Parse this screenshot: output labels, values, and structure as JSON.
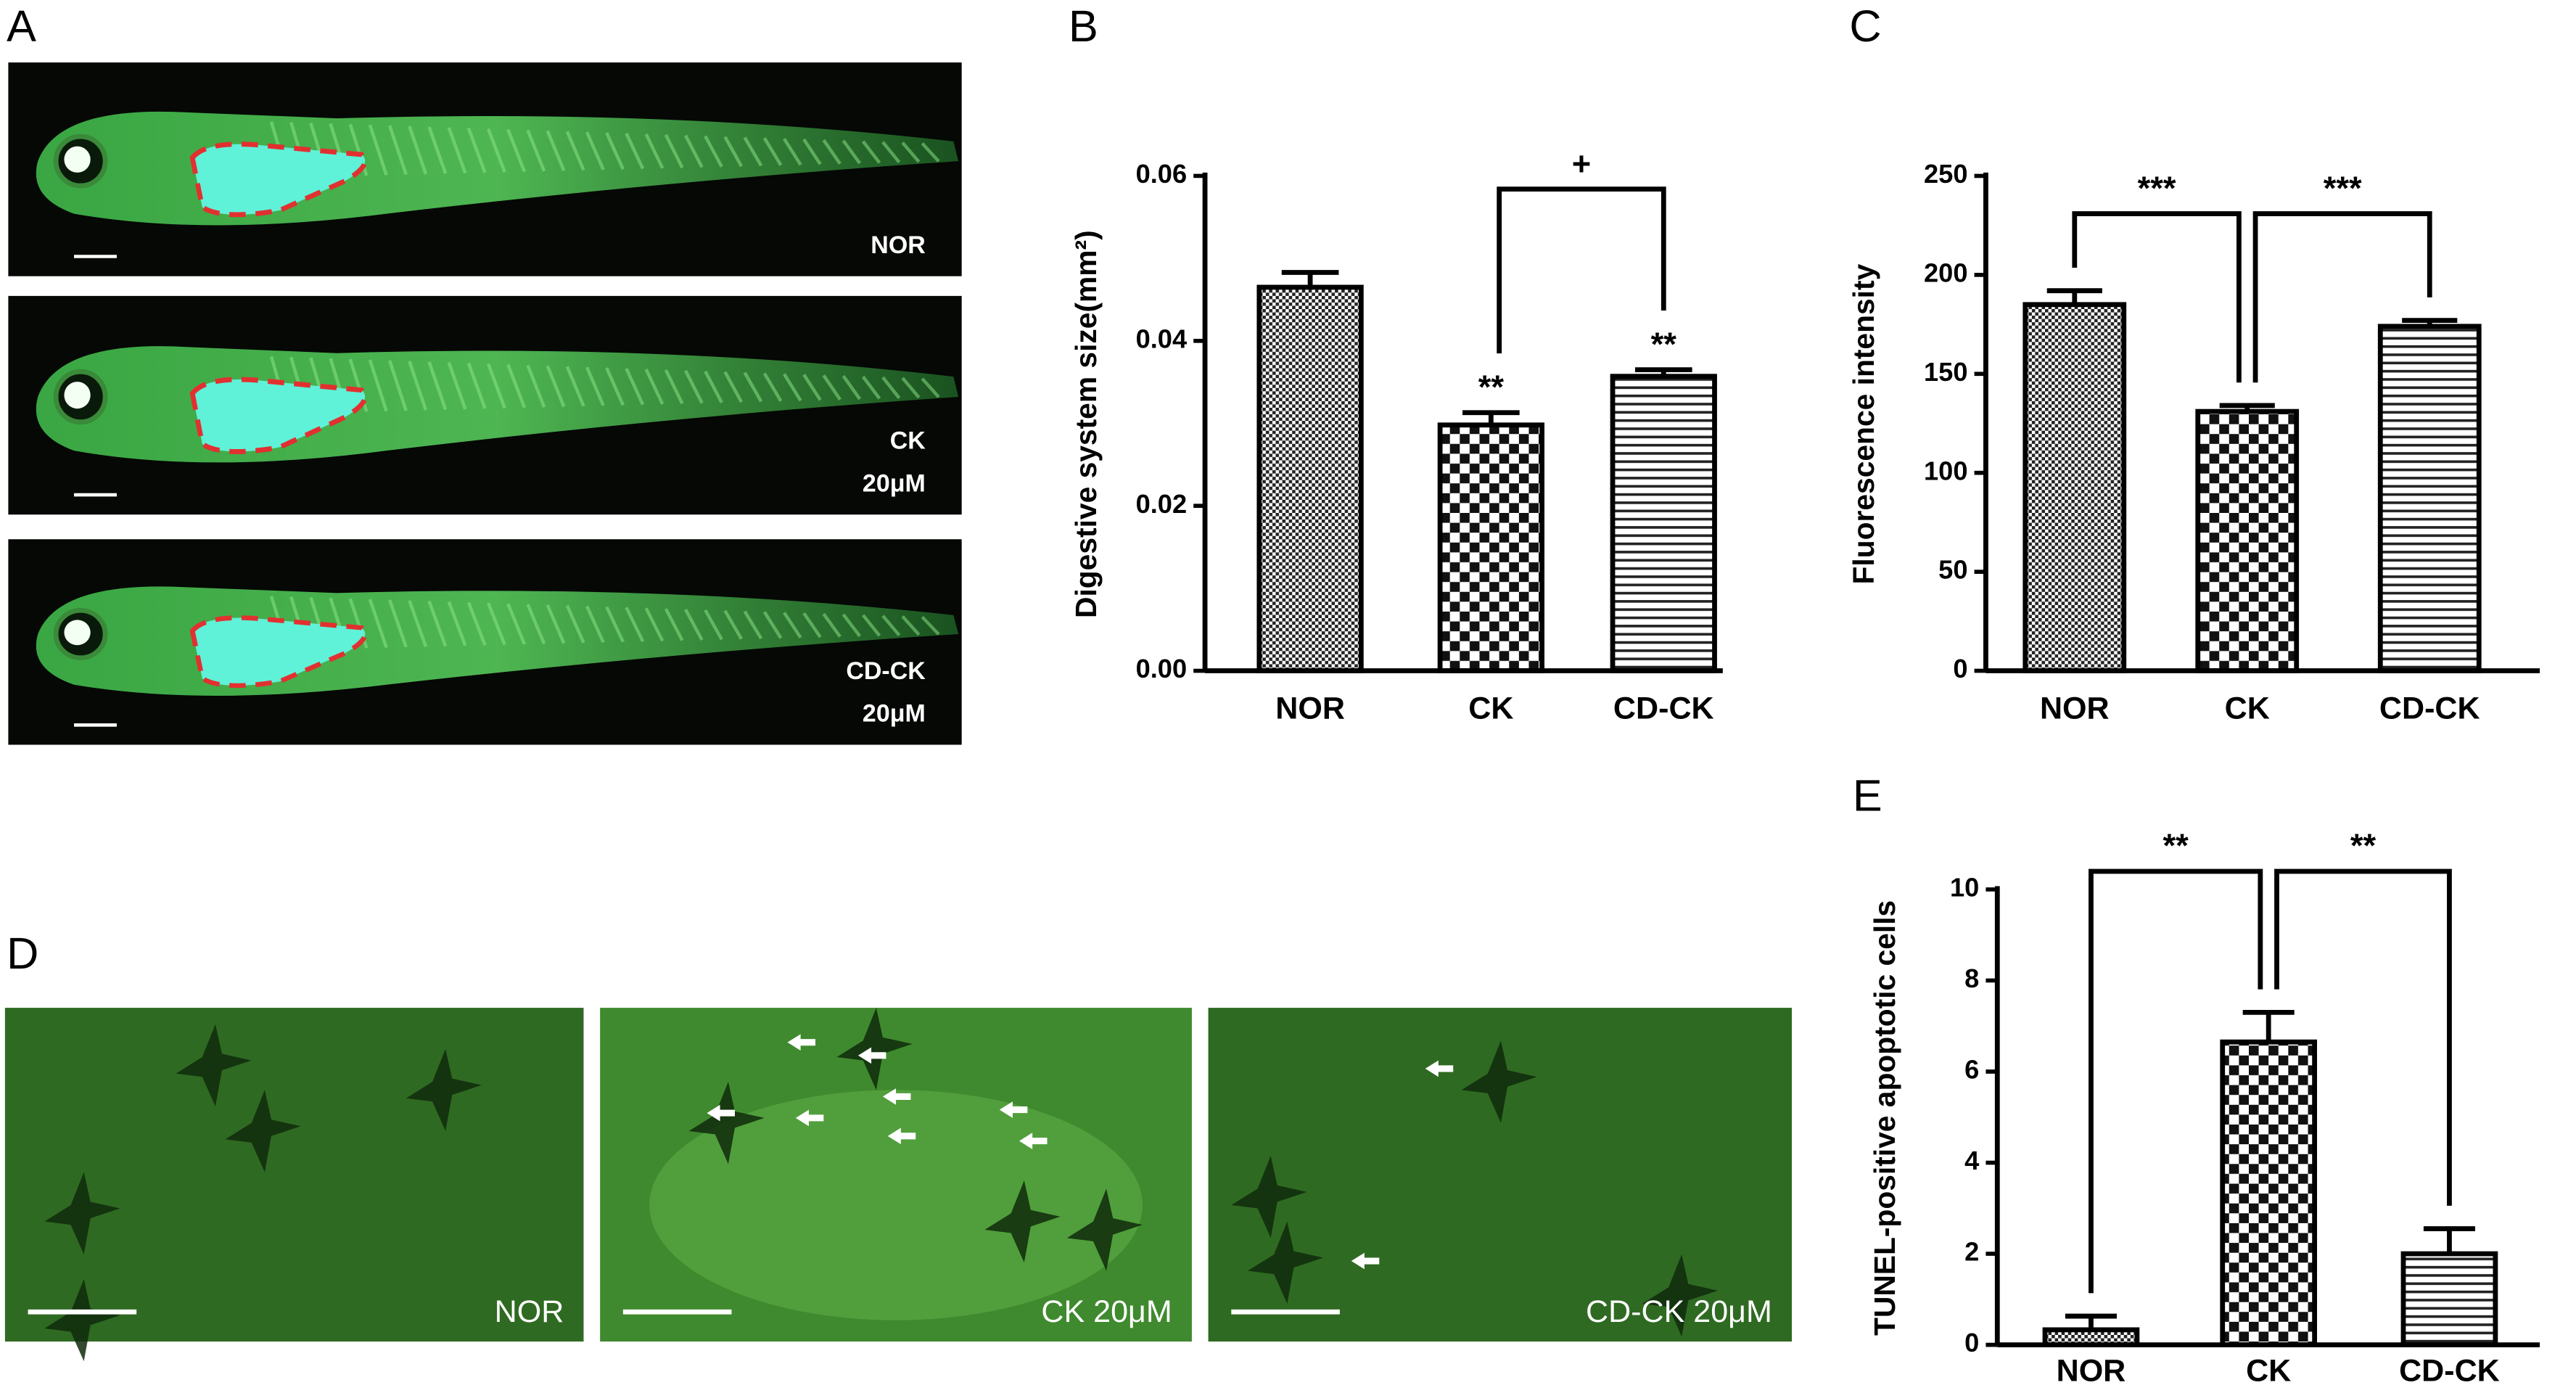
{
  "chart_data": [
    {
      "type": "bar",
      "panel": "B",
      "ylabel": "Digestive system size(mm²)",
      "categories": [
        "NOR",
        "CK",
        "CD-CK"
      ],
      "values": [
        0.0465,
        0.0298,
        0.0357
      ],
      "errors": [
        0.0018,
        0.0015,
        0.0008
      ],
      "marks": [
        null,
        "**",
        "**"
      ],
      "comparisons": [
        {
          "label": "+",
          "from": 1,
          "to": 2
        }
      ],
      "ylim": [
        0,
        0.06
      ],
      "yticks": [
        {
          "value": 0,
          "label": "0.00"
        },
        0.02,
        0.04,
        0.06
      ]
    },
    {
      "type": "bar",
      "panel": "C",
      "ylabel": "Fluorescence intensity",
      "categories": [
        "NOR",
        "CK",
        "CD-CK"
      ],
      "values": [
        185,
        131,
        174
      ],
      "errors": [
        7,
        3,
        3
      ],
      "marks": [
        null,
        null,
        null
      ],
      "comparisons": [
        {
          "label": "***",
          "from": 0,
          "to": 1
        },
        {
          "label": "***",
          "from": 1,
          "to": 2
        }
      ],
      "ylim": [
        0,
        250
      ],
      "yticks": [
        0,
        50,
        100,
        150,
        200,
        250
      ]
    },
    {
      "type": "bar",
      "panel": "E",
      "ylabel": "TUNEL-positive apoptotic cells",
      "categories": [
        "NOR",
        "CK",
        "CD-CK"
      ],
      "values": [
        0.33,
        6.65,
        2.0
      ],
      "errors": [
        0.3,
        0.65,
        0.55
      ],
      "marks": [
        null,
        null,
        null
      ],
      "comparisons": [
        {
          "label": "**",
          "from": 0,
          "to": 1
        },
        {
          "label": "**",
          "from": 1,
          "to": 2
        }
      ],
      "ylim": [
        0,
        10
      ],
      "yticks": [
        0,
        2,
        4,
        6,
        8,
        10
      ]
    }
  ],
  "images": [
    {
      "panel": "A",
      "labels": [
        [
          "NOR"
        ],
        [
          "CK",
          "20μM"
        ],
        [
          "CD-CK",
          "20μM"
        ]
      ]
    },
    {
      "panel": "D",
      "labels": [
        "NOR",
        "CK 20μM",
        "CD-CK 20μM"
      ]
    }
  ]
}
